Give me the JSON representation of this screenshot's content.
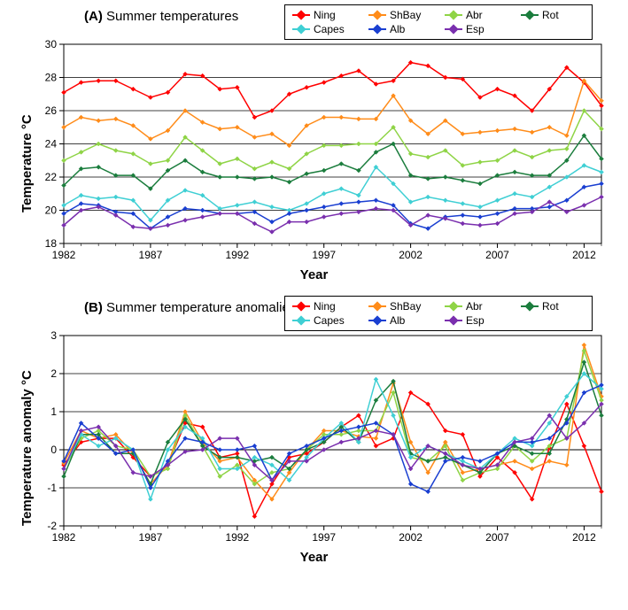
{
  "colors": {
    "Ning": "#ff0000",
    "ShBay": "#ff8c1a",
    "Abr": "#8fd446",
    "Rot": "#1b7d3d",
    "Capes": "#3fcfd4",
    "Alb": "#1a3fd1",
    "Esp": "#7a2fae",
    "axis": "#000000",
    "grid": "#000000",
    "bg": "#ffffff"
  },
  "legend": {
    "rows": [
      [
        {
          "key": "Ning",
          "label": "Ning"
        },
        {
          "key": "ShBay",
          "label": "ShBay"
        },
        {
          "key": "Abr",
          "label": "Abr"
        },
        {
          "key": "Rot",
          "label": "Rot"
        }
      ],
      [
        {
          "key": "Capes",
          "label": "Capes"
        },
        {
          "key": "Alb",
          "label": "Alb"
        },
        {
          "key": "Esp",
          "label": "Esp"
        }
      ]
    ]
  },
  "panelA": {
    "title": "(A)",
    "subtitle": "Summer temperatures",
    "xlabel": "Year",
    "ylabel": "Temperature °C",
    "xlim": [
      1982,
      2013
    ],
    "ylim": [
      18,
      30
    ],
    "xticks": [
      1982,
      1987,
      1992,
      1997,
      2002,
      2007,
      2012
    ],
    "yticks": [
      18,
      20,
      22,
      24,
      26,
      28,
      30
    ],
    "title_fontsize": 15,
    "label_fontsize": 15,
    "tick_fontsize": 12,
    "line_width": 1.5,
    "marker_size": 5,
    "years": [
      1982,
      1983,
      1984,
      1985,
      1986,
      1987,
      1988,
      1989,
      1990,
      1991,
      1992,
      1993,
      1994,
      1995,
      1996,
      1997,
      1998,
      1999,
      2000,
      2001,
      2002,
      2003,
      2004,
      2005,
      2006,
      2007,
      2008,
      2009,
      2010,
      2011,
      2012,
      2013
    ],
    "series": {
      "Ning": [
        27.1,
        27.7,
        27.8,
        27.8,
        27.3,
        26.8,
        27.1,
        28.2,
        28.1,
        27.3,
        27.4,
        25.6,
        26.0,
        27.0,
        27.4,
        27.7,
        28.1,
        28.4,
        27.6,
        27.8,
        28.9,
        28.7,
        28.0,
        27.9,
        26.8,
        27.3,
        26.9,
        26.0,
        27.3,
        28.6,
        27.7,
        26.3
      ],
      "ShBay": [
        25.0,
        25.6,
        25.4,
        25.5,
        25.1,
        24.3,
        24.8,
        26.0,
        25.3,
        24.9,
        25.0,
        24.4,
        24.6,
        23.9,
        25.1,
        25.6,
        25.6,
        25.5,
        25.5,
        26.9,
        25.4,
        24.6,
        25.4,
        24.6,
        24.7,
        24.8,
        24.9,
        24.7,
        25.0,
        24.5,
        27.8,
        26.6
      ],
      "Abr": [
        23.0,
        23.5,
        24.0,
        23.6,
        23.4,
        22.8,
        23.0,
        24.4,
        23.6,
        22.8,
        23.1,
        22.5,
        22.9,
        22.5,
        23.4,
        23.9,
        23.9,
        24.0,
        24.0,
        25.0,
        23.4,
        23.2,
        23.6,
        22.7,
        22.9,
        23.0,
        23.6,
        23.2,
        23.6,
        23.7,
        26.0,
        24.9
      ],
      "Rot": [
        21.5,
        22.5,
        22.6,
        22.1,
        22.1,
        21.3,
        22.4,
        23.0,
        22.3,
        22.0,
        22.0,
        21.9,
        22.0,
        21.7,
        22.2,
        22.4,
        22.8,
        22.4,
        23.5,
        24.0,
        22.1,
        21.9,
        22.0,
        21.8,
        21.6,
        22.1,
        22.3,
        22.1,
        22.1,
        23.0,
        24.5,
        23.1
      ],
      "Capes": [
        20.3,
        20.9,
        20.7,
        20.8,
        20.6,
        19.4,
        20.6,
        21.2,
        20.9,
        20.1,
        20.3,
        20.5,
        20.2,
        20.0,
        20.4,
        21.0,
        21.3,
        20.9,
        22.6,
        21.6,
        20.5,
        20.8,
        20.6,
        20.4,
        20.2,
        20.6,
        21.0,
        20.8,
        21.4,
        22.0,
        22.7,
        22.3
      ],
      "Alb": [
        19.8,
        20.4,
        20.3,
        19.9,
        19.8,
        18.9,
        19.6,
        20.1,
        20.0,
        19.8,
        19.8,
        19.9,
        19.3,
        19.8,
        20.0,
        20.2,
        20.4,
        20.5,
        20.6,
        20.3,
        19.2,
        18.9,
        19.6,
        19.7,
        19.6,
        19.8,
        20.1,
        20.1,
        20.2,
        20.6,
        21.4,
        21.6
      ],
      "Esp": [
        19.1,
        20.0,
        20.2,
        19.7,
        19.0,
        18.9,
        19.1,
        19.4,
        19.6,
        19.8,
        19.8,
        19.2,
        18.7,
        19.3,
        19.3,
        19.6,
        19.8,
        19.9,
        20.1,
        20.0,
        19.1,
        19.7,
        19.5,
        19.2,
        19.1,
        19.2,
        19.8,
        19.9,
        20.5,
        19.9,
        20.3,
        20.8
      ]
    }
  },
  "panelB": {
    "title": "(B)",
    "subtitle": "Summer temperature anomalies",
    "xlabel": "Year",
    "ylabel": "Temperature anomaly °C",
    "xlim": [
      1982,
      2013
    ],
    "ylim": [
      -2,
      3
    ],
    "xticks": [
      1982,
      1987,
      1992,
      1997,
      2002,
      2007,
      2012
    ],
    "yticks": [
      -2,
      -1,
      0,
      1,
      2,
      3
    ],
    "title_fontsize": 15,
    "label_fontsize": 15,
    "tick_fontsize": 12,
    "line_width": 1.5,
    "marker_size": 5,
    "years": [
      1982,
      1983,
      1984,
      1985,
      1986,
      1987,
      1988,
      1989,
      1990,
      1991,
      1992,
      1993,
      1994,
      1995,
      1996,
      1997,
      1998,
      1999,
      2000,
      2001,
      2002,
      2003,
      2004,
      2005,
      2006,
      2007,
      2008,
      2009,
      2010,
      2011,
      2012,
      2013
    ],
    "series": {
      "Ning": [
        -0.4,
        0.2,
        0.3,
        0.3,
        -0.2,
        -0.7,
        -0.4,
        0.7,
        0.6,
        -0.2,
        -0.1,
        -1.75,
        -0.9,
        -0.2,
        -0.1,
        0.2,
        0.6,
        0.9,
        0.1,
        0.3,
        1.5,
        1.2,
        0.5,
        0.4,
        -0.7,
        -0.2,
        -0.6,
        -1.3,
        0.05,
        1.2,
        0.1,
        -1.1
      ],
      "ShBay": [
        -0.35,
        0.5,
        0.3,
        0.4,
        -0.1,
        -0.9,
        -0.4,
        1.0,
        0.2,
        -0.3,
        -0.2,
        -0.8,
        -1.3,
        -0.6,
        0.0,
        0.5,
        0.5,
        0.35,
        0.3,
        1.75,
        0.2,
        -0.6,
        0.2,
        -0.6,
        -0.5,
        -0.4,
        -0.3,
        -0.5,
        -0.3,
        -0.4,
        2.75,
        1.4
      ],
      "Abr": [
        -0.5,
        0.3,
        0.5,
        0.1,
        0.0,
        -0.7,
        -0.5,
        0.9,
        0.1,
        -0.7,
        -0.4,
        -0.9,
        -0.6,
        -0.5,
        0.0,
        0.4,
        0.4,
        0.5,
        0.5,
        1.5,
        -0.2,
        -0.3,
        0.1,
        -0.8,
        -0.6,
        -0.5,
        0.1,
        -0.3,
        0.1,
        0.3,
        2.6,
        1.3
      ],
      "Rot": [
        -0.7,
        0.4,
        0.4,
        -0.1,
        -0.1,
        -0.9,
        0.2,
        0.8,
        0.1,
        -0.2,
        -0.2,
        -0.3,
        -0.2,
        -0.5,
        0.0,
        0.2,
        0.6,
        0.2,
        1.3,
        1.8,
        -0.1,
        -0.3,
        -0.2,
        -0.4,
        -0.6,
        -0.1,
        0.1,
        -0.1,
        -0.1,
        0.8,
        2.3,
        0.9
      ],
      "Capes": [
        -0.5,
        0.4,
        0.1,
        0.3,
        0.0,
        -1.3,
        0.0,
        0.6,
        0.3,
        -0.5,
        -0.5,
        -0.2,
        -0.4,
        -0.8,
        -0.2,
        0.3,
        0.7,
        0.2,
        1.85,
        0.9,
        -0.2,
        0.1,
        -0.1,
        -0.3,
        -0.5,
        -0.1,
        0.3,
        0.1,
        0.7,
        1.4,
        2.0,
        1.6
      ],
      "Alb": [
        -0.3,
        0.7,
        0.3,
        -0.1,
        -0.0,
        -1.0,
        -0.3,
        0.3,
        0.2,
        0.0,
        0.0,
        0.1,
        -0.8,
        -0.1,
        0.1,
        0.3,
        0.5,
        0.6,
        0.7,
        0.4,
        -0.9,
        -1.1,
        -0.3,
        -0.2,
        -0.3,
        -0.1,
        0.2,
        0.2,
        0.3,
        0.7,
        1.5,
        1.7
      ],
      "Esp": [
        -0.5,
        0.5,
        0.6,
        0.1,
        -0.6,
        -0.7,
        -0.4,
        -0.05,
        0.0,
        0.3,
        0.3,
        -0.4,
        -0.8,
        -0.3,
        -0.3,
        0.0,
        0.2,
        0.3,
        0.5,
        0.4,
        -0.5,
        0.1,
        -0.1,
        -0.4,
        -0.5,
        -0.4,
        0.2,
        0.3,
        0.9,
        0.3,
        0.7,
        1.2
      ]
    }
  }
}
